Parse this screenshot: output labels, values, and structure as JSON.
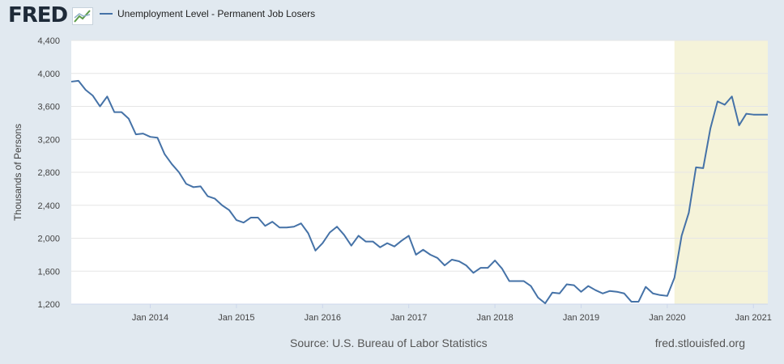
{
  "header": {
    "logo_text": "FRED",
    "legend_label": "Unemployment Level - Permanent Job Losers",
    "series_color": "#4572a7"
  },
  "footer": {
    "source": "Source: U.S. Bureau of Labor Statistics",
    "site": "fred.stlouisfed.org"
  },
  "chart_data": {
    "type": "line",
    "ylabel": "Thousands of Persons",
    "ylim": [
      1200,
      4400
    ],
    "yticks": [
      1200,
      1600,
      2000,
      2400,
      2800,
      3200,
      3600,
      4000,
      4400
    ],
    "ytick_labels": [
      "1,200",
      "1,600",
      "2,000",
      "2,400",
      "2,800",
      "3,200",
      "3,600",
      "4,000",
      "4,400"
    ],
    "xticks": [
      "2014-01",
      "2015-01",
      "2016-01",
      "2017-01",
      "2018-01",
      "2019-01",
      "2020-01",
      "2021-01"
    ],
    "xtick_labels": [
      "Jan 2014",
      "Jan 2015",
      "Jan 2016",
      "Jan 2017",
      "Jan 2018",
      "Jan 2019",
      "Jan 2020",
      "Jan 2021"
    ],
    "x_range": [
      "2013-02",
      "2021-03"
    ],
    "recession_shading": {
      "start": "2020-02",
      "end": "2021-03",
      "color": "#f5f3d9"
    },
    "grid": true,
    "series": [
      {
        "name": "Unemployment Level - Permanent Job Losers",
        "x": [
          "2013-02",
          "2013-03",
          "2013-04",
          "2013-05",
          "2013-06",
          "2013-07",
          "2013-08",
          "2013-09",
          "2013-10",
          "2013-11",
          "2013-12",
          "2014-01",
          "2014-02",
          "2014-03",
          "2014-04",
          "2014-05",
          "2014-06",
          "2014-07",
          "2014-08",
          "2014-09",
          "2014-10",
          "2014-11",
          "2014-12",
          "2015-01",
          "2015-02",
          "2015-03",
          "2015-04",
          "2015-05",
          "2015-06",
          "2015-07",
          "2015-08",
          "2015-09",
          "2015-10",
          "2015-11",
          "2015-12",
          "2016-01",
          "2016-02",
          "2016-03",
          "2016-04",
          "2016-05",
          "2016-06",
          "2016-07",
          "2016-08",
          "2016-09",
          "2016-10",
          "2016-11",
          "2016-12",
          "2017-01",
          "2017-02",
          "2017-03",
          "2017-04",
          "2017-05",
          "2017-06",
          "2017-07",
          "2017-08",
          "2017-09",
          "2017-10",
          "2017-11",
          "2017-12",
          "2018-01",
          "2018-02",
          "2018-03",
          "2018-04",
          "2018-05",
          "2018-06",
          "2018-07",
          "2018-08",
          "2018-09",
          "2018-10",
          "2018-11",
          "2018-12",
          "2019-01",
          "2019-02",
          "2019-03",
          "2019-04",
          "2019-05",
          "2019-06",
          "2019-07",
          "2019-08",
          "2019-09",
          "2019-10",
          "2019-11",
          "2019-12",
          "2020-01",
          "2020-02",
          "2020-03",
          "2020-04",
          "2020-05",
          "2020-06",
          "2020-07",
          "2020-08",
          "2020-09",
          "2020-10",
          "2020-11",
          "2020-12",
          "2021-01",
          "2021-02",
          "2021-03"
        ],
        "values": [
          3900,
          3910,
          3800,
          3730,
          3600,
          3720,
          3530,
          3530,
          3450,
          3260,
          3270,
          3230,
          3220,
          3020,
          2900,
          2800,
          2660,
          2620,
          2630,
          2510,
          2480,
          2400,
          2340,
          2220,
          2190,
          2250,
          2250,
          2150,
          2200,
          2130,
          2130,
          2140,
          2180,
          2060,
          1850,
          1940,
          2070,
          2140,
          2040,
          1910,
          2030,
          1960,
          1960,
          1890,
          1940,
          1900,
          1970,
          2030,
          1800,
          1860,
          1800,
          1760,
          1670,
          1740,
          1720,
          1670,
          1580,
          1640,
          1640,
          1730,
          1630,
          1480,
          1480,
          1480,
          1420,
          1280,
          1210,
          1340,
          1330,
          1440,
          1430,
          1350,
          1420,
          1370,
          1330,
          1360,
          1350,
          1330,
          1230,
          1230,
          1410,
          1330,
          1310,
          1300,
          1520,
          2030,
          2310,
          2860,
          2850,
          3330,
          3660,
          3620,
          3720,
          3370,
          3510,
          3500,
          3500,
          3500
        ]
      }
    ]
  }
}
